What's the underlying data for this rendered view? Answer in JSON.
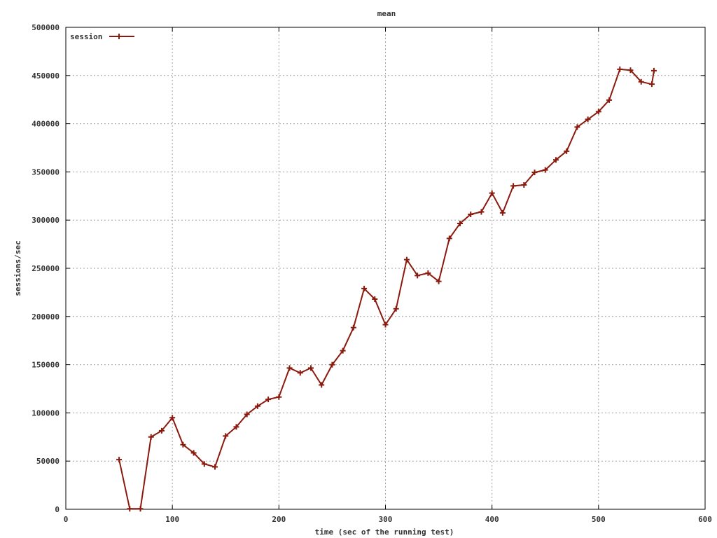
{
  "chart_data": {
    "type": "line",
    "title": "mean",
    "xlabel": "time (sec of the running test)",
    "ylabel": "sessions/sec",
    "xlim": [
      0,
      600
    ],
    "ylim": [
      0,
      500000
    ],
    "x_ticks": [
      0,
      100,
      200,
      300,
      400,
      500,
      600
    ],
    "y_ticks": [
      0,
      50000,
      100000,
      150000,
      200000,
      250000,
      300000,
      350000,
      400000,
      450000,
      500000
    ],
    "grid": true,
    "legend_position": "top-left",
    "colors": {
      "series": "#8b1a0e",
      "grid": "#a0a0a0",
      "axis": "#000000"
    },
    "series": [
      {
        "name": "session",
        "x": [
          50,
          60,
          70,
          80,
          90,
          100,
          110,
          120,
          130,
          140,
          150,
          160,
          170,
          180,
          190,
          200,
          210,
          220,
          230,
          240,
          250,
          260,
          270,
          280,
          290,
          300,
          310,
          320,
          330,
          340,
          350,
          360,
          370,
          380,
          390,
          400,
          410,
          420,
          430,
          440,
          450,
          460,
          470,
          480,
          490,
          500,
          510,
          520,
          530,
          540,
          550,
          552
        ],
        "y": [
          51500,
          500,
          500,
          75000,
          81500,
          95000,
          67000,
          58500,
          47000,
          44000,
          76000,
          85500,
          98500,
          107000,
          114000,
          116500,
          146500,
          141500,
          146500,
          129000,
          150000,
          164500,
          188500,
          229000,
          218000,
          191500,
          208000,
          259000,
          242500,
          245000,
          236500,
          281000,
          296500,
          306000,
          308500,
          328000,
          307500,
          335500,
          336500,
          349500,
          352000,
          362500,
          371500,
          396500,
          404500,
          412500,
          424500,
          456500,
          455500,
          443500,
          441000,
          455000
        ]
      }
    ]
  }
}
